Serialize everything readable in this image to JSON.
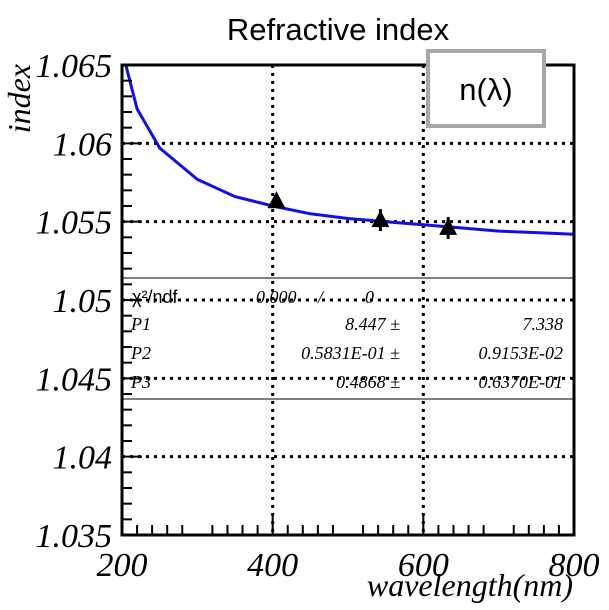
{
  "chart_data": {
    "type": "scatter",
    "title": "Refractive index",
    "xlabel": "wavelength(nm)",
    "ylabel": "index",
    "xlim": [
      200,
      800
    ],
    "ylim": [
      1.035,
      1.065
    ],
    "x_ticks": [
      "200",
      "400",
      "600",
      "800"
    ],
    "y_ticks": [
      "1.035",
      "1.04",
      "1.045",
      "1.05",
      "1.055",
      "1.06",
      "1.065"
    ],
    "grid": "dotted",
    "points": [
      {
        "x": 405,
        "y": 1.0563,
        "err": 0.0004
      },
      {
        "x": 543,
        "y": 1.0551,
        "err": 0.0007
      },
      {
        "x": 633,
        "y": 1.0546,
        "err": 0.0007
      }
    ],
    "fit_curve": [
      [
        205,
        1.065
      ],
      [
        220,
        1.0622
      ],
      [
        250,
        1.0597
      ],
      [
        300,
        1.0577
      ],
      [
        350,
        1.0566
      ],
      [
        400,
        1.056
      ],
      [
        450,
        1.0555
      ],
      [
        500,
        1.0552
      ],
      [
        550,
        1.055
      ],
      [
        600,
        1.0548
      ],
      [
        650,
        1.0546
      ],
      [
        700,
        1.0544
      ],
      [
        750,
        1.0543
      ],
      [
        800,
        1.0542
      ]
    ],
    "legend_box": "n(λ)",
    "stats": {
      "header": [
        "χ²/ndf",
        "0.000",
        "/",
        "0"
      ],
      "rows": [
        [
          "P1",
          "8.447 ±",
          "7.338"
        ],
        [
          "P2",
          "0.5831E-01 ±",
          "0.9153E-02"
        ],
        [
          "P3",
          "0.4868 ±",
          "0.6370E-01"
        ]
      ]
    },
    "colors": {
      "fit": "#1010e0",
      "markers": "#000000",
      "frame": "#000000"
    }
  }
}
